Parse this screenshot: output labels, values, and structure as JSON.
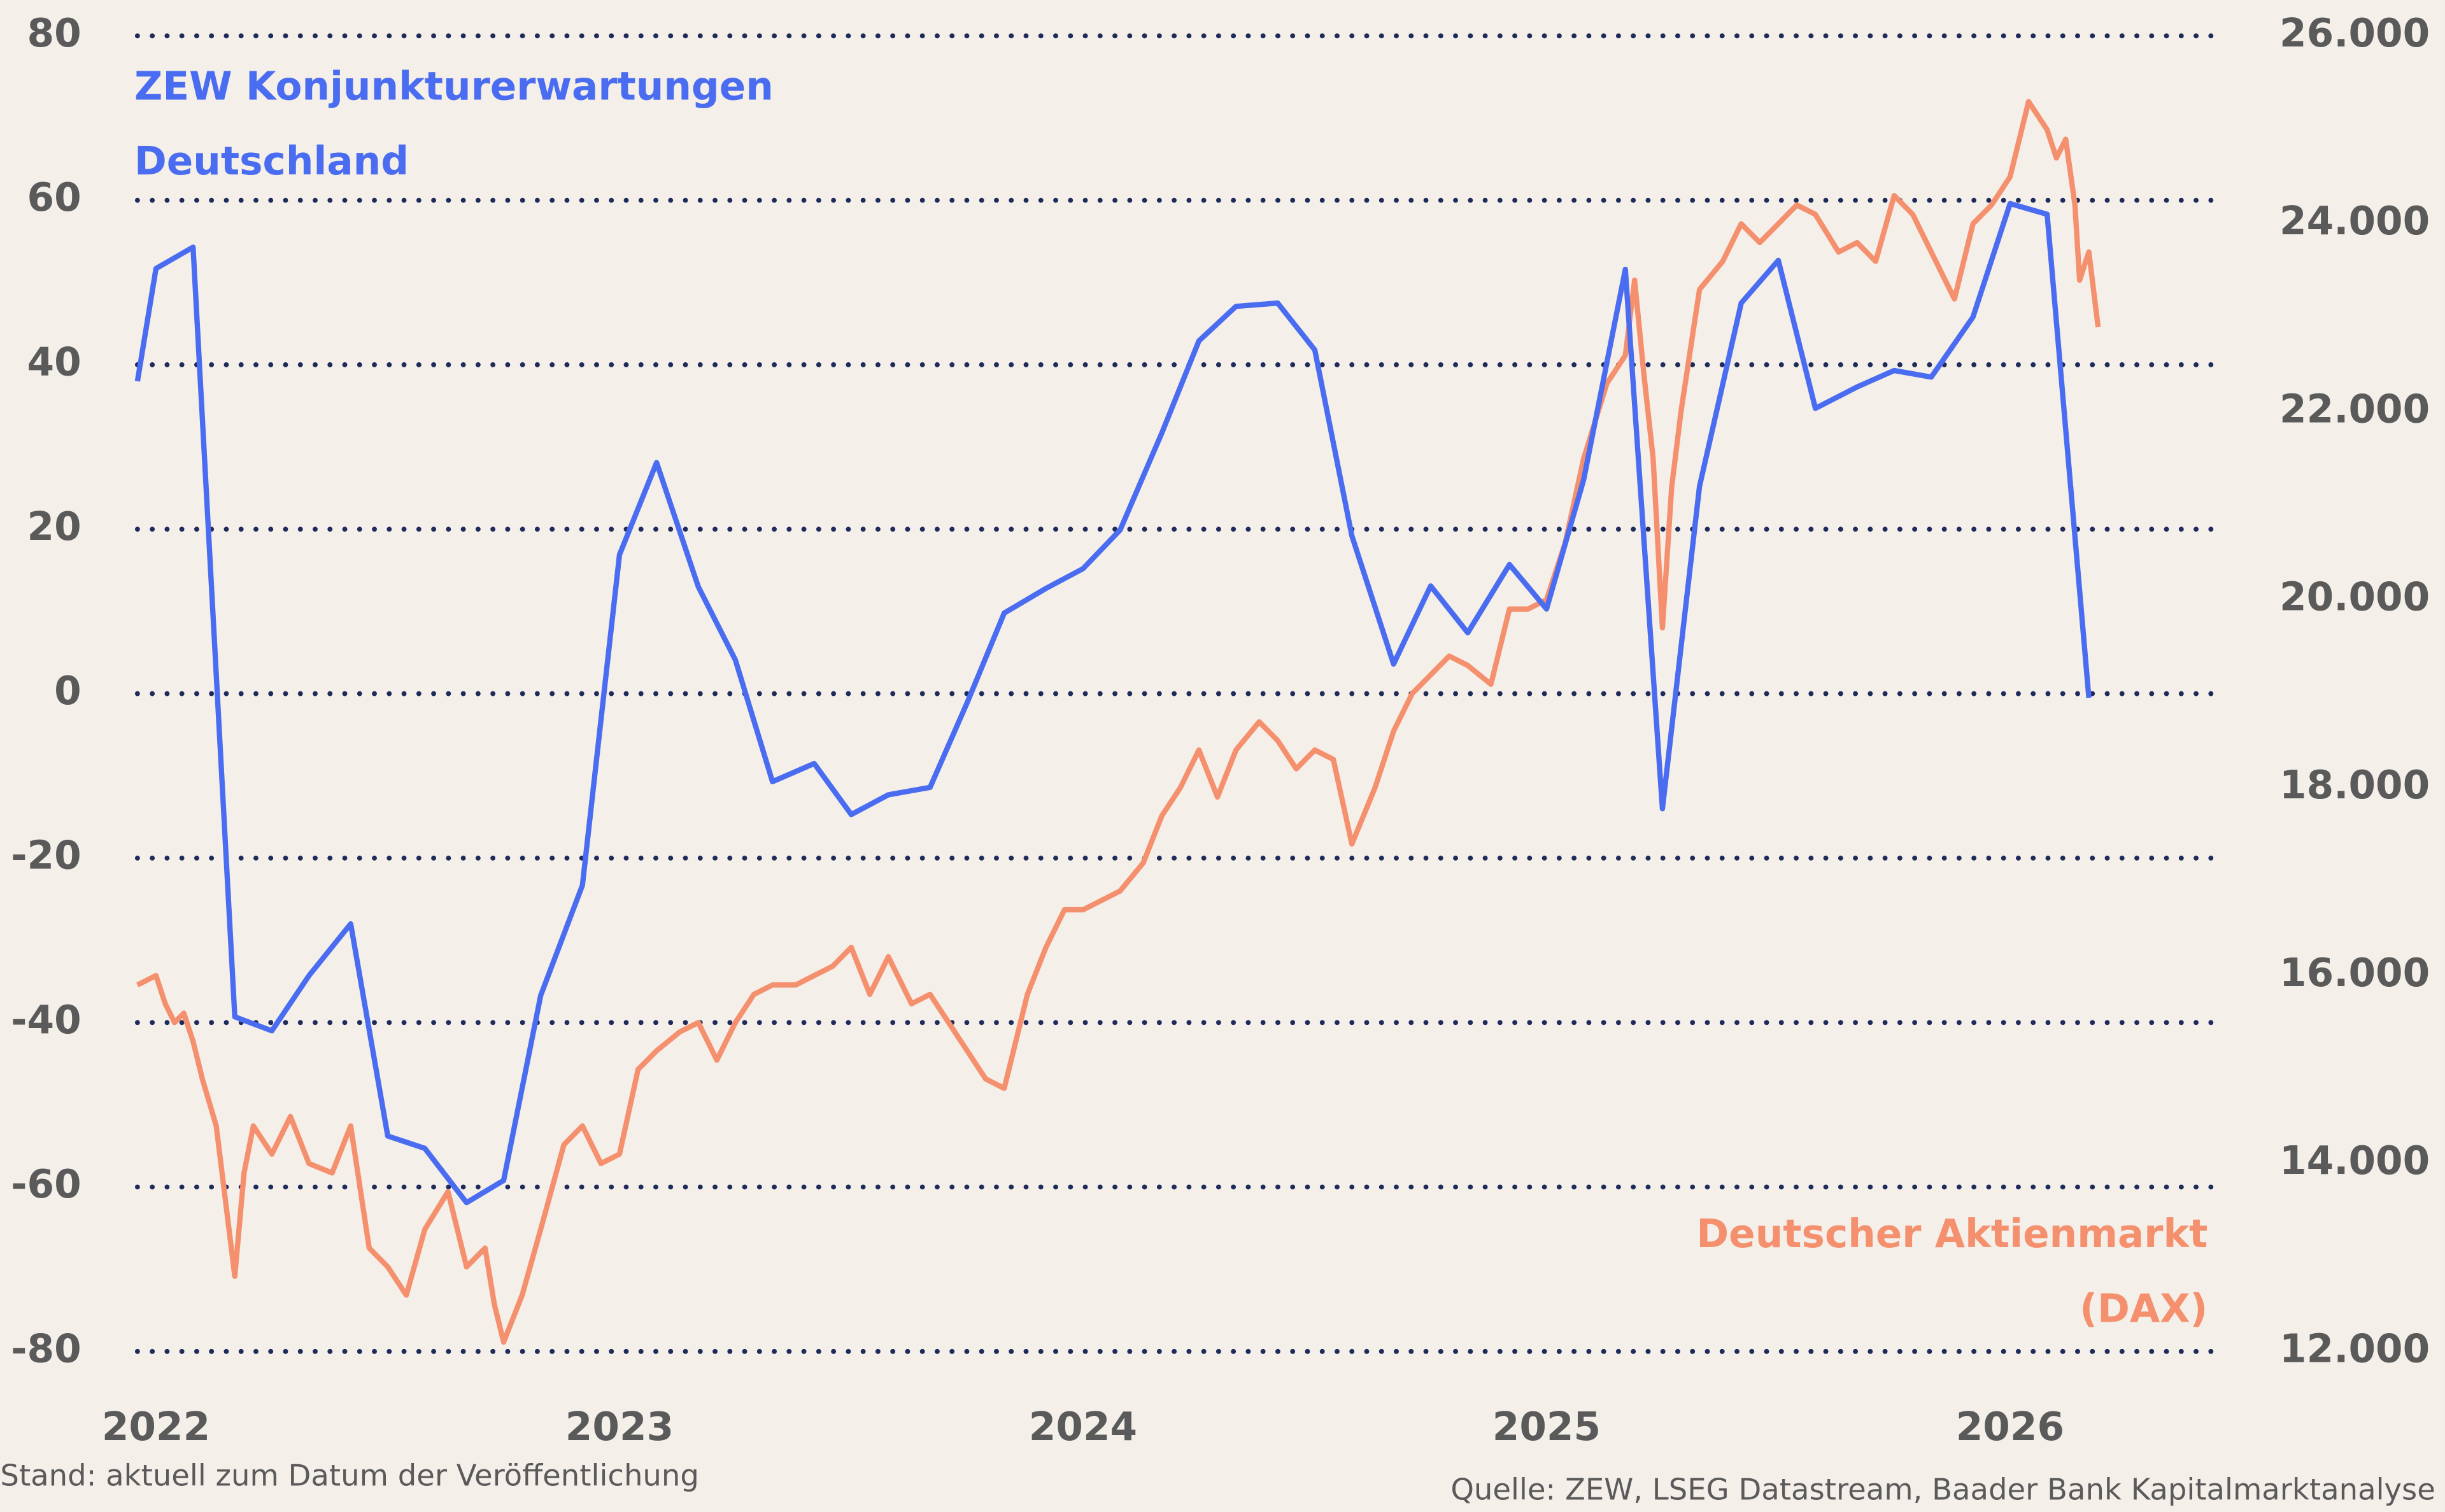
{
  "chart_data": {
    "type": "line",
    "xlim": [
      2021.96,
      2026.44
    ],
    "xticks": [
      2022,
      2023,
      2024,
      2025,
      2026
    ],
    "ylim": [
      -80,
      80
    ],
    "yticks": [
      80,
      60,
      40,
      20,
      0,
      -20,
      -40,
      -60,
      -80
    ],
    "y2lim": [
      12000,
      26000
    ],
    "y2ticks": [
      {
        "value": 26000,
        "label": "26.000"
      },
      {
        "value": 24000,
        "label": "24.000"
      },
      {
        "value": 22000,
        "label": "22.000"
      },
      {
        "value": 20000,
        "label": "20.000"
      },
      {
        "value": 18000,
        "label": "18.000"
      },
      {
        "value": 16000,
        "label": "16.000"
      },
      {
        "value": 14000,
        "label": "14.000"
      },
      {
        "value": 12000,
        "label": "12.000"
      }
    ],
    "grid": true,
    "series": [
      {
        "name": [
          "ZEW Konjunkturerwartungen",
          "Deutschland"
        ],
        "color": "#4a6cf0",
        "x": [
          2021.96,
          2022.0,
          2022.08,
          2022.17,
          2022.25,
          2022.33,
          2022.42,
          2022.5,
          2022.58,
          2022.67,
          2022.75,
          2022.83,
          2022.92,
          2023.0,
          2023.08,
          2023.17,
          2023.25,
          2023.33,
          2023.42,
          2023.5,
          2023.58,
          2023.67,
          2023.75,
          2023.83,
          2023.92,
          2024.0,
          2024.08,
          2024.17,
          2024.25,
          2024.33,
          2024.42,
          2024.5,
          2024.58,
          2024.67,
          2024.75,
          2024.83,
          2024.92,
          2025.0,
          2025.08,
          2025.17,
          2025.25,
          2025.33,
          2025.42,
          2025.5,
          2025.58,
          2025.67,
          2025.75,
          2025.83,
          2025.92,
          2026.0,
          2026.08,
          2026.17
        ],
        "values": [
          38,
          51.7,
          54.3,
          -39.3,
          -41.0,
          -34.3,
          -28.0,
          -53.8,
          -55.3,
          -61.9,
          -59.2,
          -36.7,
          -23.3,
          16.9,
          28.1,
          13.0,
          4.1,
          -10.7,
          -8.5,
          -14.7,
          -12.3,
          -11.4,
          -1.1,
          9.8,
          12.8,
          15.2,
          19.9,
          31.7,
          42.9,
          47.1,
          47.5,
          41.8,
          19.2,
          3.6,
          13.1,
          7.4,
          15.7,
          10.3,
          26.0,
          51.6,
          -14.0,
          25.2,
          47.5,
          52.7,
          34.7,
          37.3,
          39.3,
          38.5,
          45.8,
          59.6,
          58.3,
          -0.5
        ]
      },
      {
        "name": [
          "Deutscher Aktienmarkt",
          "(DAX)"
        ],
        "color": "#f5906e",
        "axis": "y2",
        "x": [
          2021.96,
          2022.0,
          2022.02,
          2022.04,
          2022.06,
          2022.08,
          2022.1,
          2022.13,
          2022.17,
          2022.19,
          2022.21,
          2022.25,
          2022.29,
          2022.33,
          2022.38,
          2022.42,
          2022.46,
          2022.5,
          2022.54,
          2022.58,
          2022.63,
          2022.67,
          2022.71,
          2022.73,
          2022.75,
          2022.79,
          2022.83,
          2022.88,
          2022.92,
          2022.96,
          2023.0,
          2023.04,
          2023.08,
          2023.13,
          2023.17,
          2023.21,
          2023.25,
          2023.29,
          2023.33,
          2023.38,
          2023.42,
          2023.46,
          2023.5,
          2023.54,
          2023.58,
          2023.63,
          2023.67,
          2023.71,
          2023.75,
          2023.79,
          2023.83,
          2023.88,
          2023.92,
          2023.96,
          2024.0,
          2024.04,
          2024.08,
          2024.13,
          2024.17,
          2024.21,
          2024.25,
          2024.29,
          2024.33,
          2024.38,
          2024.42,
          2024.46,
          2024.5,
          2024.54,
          2024.58,
          2024.63,
          2024.67,
          2024.71,
          2024.75,
          2024.79,
          2024.83,
          2024.88,
          2024.92,
          2024.96,
          2025.0,
          2025.04,
          2025.08,
          2025.13,
          2025.17,
          2025.19,
          2025.21,
          2025.23,
          2025.25,
          2025.27,
          2025.29,
          2025.33,
          2025.38,
          2025.42,
          2025.46,
          2025.5,
          2025.54,
          2025.58,
          2025.63,
          2025.67,
          2025.71,
          2025.75,
          2025.79,
          2025.83,
          2025.88,
          2025.92,
          2025.96,
          2026.0,
          2026.04,
          2026.08,
          2026.1,
          2026.12,
          2026.14,
          2026.15,
          2026.17,
          2026.19
        ],
        "values": [
          15900,
          16000,
          15700,
          15500,
          15600,
          15300,
          14900,
          14400,
          12800,
          13900,
          14400,
          14100,
          14500,
          14000,
          13900,
          14400,
          13100,
          12900,
          12600,
          13300,
          13700,
          12900,
          13100,
          12500,
          12100,
          12600,
          13300,
          14200,
          14400,
          14000,
          14100,
          15000,
          15200,
          15400,
          15500,
          15100,
          15500,
          15800,
          15900,
          15900,
          16000,
          16100,
          16300,
          15800,
          16200,
          15700,
          15800,
          15500,
          15200,
          14900,
          14800,
          15800,
          16300,
          16700,
          16700,
          16800,
          16900,
          17200,
          17700,
          18000,
          18400,
          17900,
          18400,
          18700,
          18500,
          18200,
          18400,
          18300,
          17400,
          18000,
          18600,
          19000,
          19200,
          19400,
          19300,
          19100,
          19900,
          19900,
          20000,
          20600,
          21500,
          22300,
          22600,
          23400,
          22400,
          21500,
          19700,
          21200,
          22000,
          23300,
          23600,
          24000,
          23800,
          24000,
          24200,
          24100,
          23700,
          23800,
          23600,
          24300,
          24100,
          23700,
          23200,
          24000,
          24200,
          24500,
          25300,
          25000,
          24700,
          24900,
          24200,
          23400,
          23700,
          22900
        ]
      }
    ],
    "footnote": "Stand: aktuell zum Datum der Veröffentlichung",
    "source": "Quelle: ZEW, LSEG Datastream, Baader Bank Kapitalmarktanalyse"
  }
}
